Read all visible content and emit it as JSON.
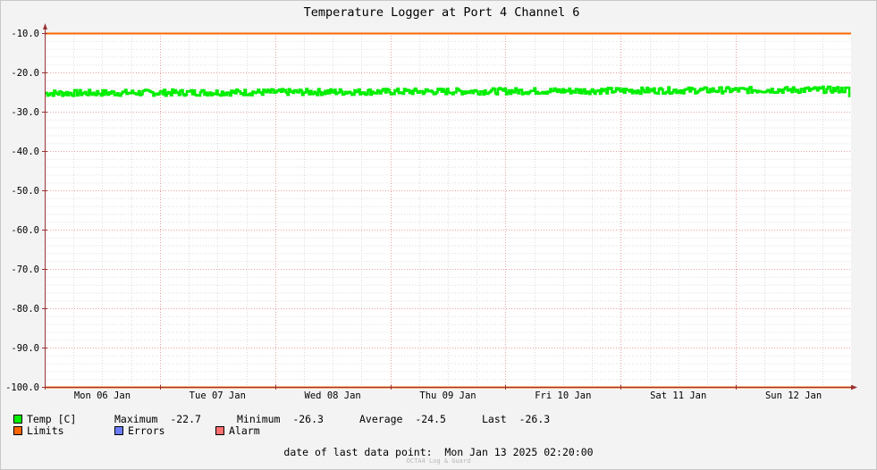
{
  "chart_data": {
    "type": "line",
    "title": "Temperature Logger at Port 4 Channel 6",
    "ylim": [
      -100,
      -10
    ],
    "y_ticks": [
      "-10.0",
      "-20.0",
      "-30.0",
      "-40.0",
      "-50.0",
      "-60.0",
      "-70.0",
      "-80.0",
      "-90.0",
      "-100.0"
    ],
    "x_tick_labels": [
      "Mon 06 Jan",
      "Tue 07 Jan",
      "Wed 08 Jan",
      "Thu 09 Jan",
      "Fri 10 Jan",
      "Sat 11 Jan",
      "Sun 12 Jan"
    ],
    "grid": true,
    "limits": [
      -10,
      -100
    ],
    "series": [
      {
        "name": "Temp [C]",
        "color": "#00ee00",
        "range_min": -26.3,
        "range_max": -22.7,
        "center_start": -25.3,
        "center_end": -24.4,
        "last": -26.3
      }
    ]
  },
  "legend": {
    "temp": {
      "label": "Temp [C]",
      "color": "#00ee00",
      "max_label": "Maximum",
      "max_value": "-22.7",
      "min_label": "Minimum",
      "min_value": "-26.3",
      "avg_label": "Average",
      "avg_value": "-24.5",
      "last_label": "Last",
      "last_value": "-26.3"
    },
    "limits": {
      "label": "Limits",
      "color": "#ff6600"
    },
    "errors": {
      "label": "Errors",
      "color": "#6c7cff"
    },
    "alarm": {
      "label": "Alarm",
      "color": "#ff7070"
    }
  },
  "footer": {
    "last_point_label": "date of last data point:",
    "last_point_value": "Mon Jan 13 2025 02:20:00",
    "watermark": "OCTA4 Log & Guard"
  }
}
